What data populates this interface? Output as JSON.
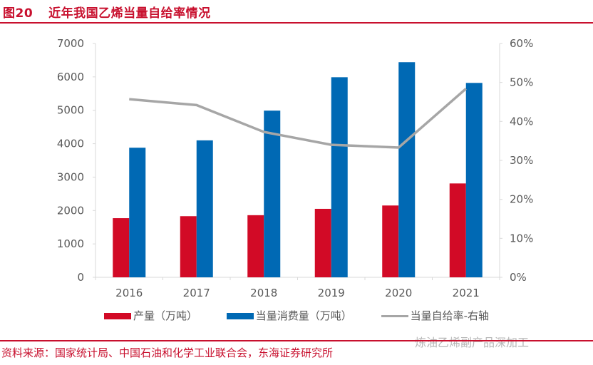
{
  "figure": {
    "number": "图20",
    "title": "近年我国乙烯当量自给率情况"
  },
  "source": "资料来源：国家统计局、中国石油和化学工业联合会，东海证券研究所",
  "watermark": "炼油乙烯副产品深加工",
  "chart_data": {
    "type": "bar+line",
    "categories": [
      "2016",
      "2017",
      "2018",
      "2019",
      "2020",
      "2021"
    ],
    "y_left": {
      "range": [
        0,
        7000
      ],
      "ticks": [
        "0",
        "1000",
        "2000",
        "3000",
        "4000",
        "5000",
        "6000",
        "7000"
      ]
    },
    "y_right": {
      "range": [
        0,
        60
      ],
      "ticks": [
        "0%",
        "10%",
        "20%",
        "30%",
        "40%",
        "50%",
        "60%"
      ]
    },
    "series": [
      {
        "name": "产量（万吨）",
        "type": "bar",
        "axis": "left",
        "color": "#d20a26",
        "values": [
          1770,
          1830,
          1860,
          2050,
          2150,
          2810
        ]
      },
      {
        "name": "当量消费量（万吨）",
        "type": "bar",
        "axis": "left",
        "color": "#0069b4",
        "values": [
          3880,
          4100,
          4990,
          5990,
          6440,
          5820
        ]
      },
      {
        "name": "当量自给率-右轴",
        "type": "line",
        "axis": "right",
        "color": "#a6a6a6",
        "values": [
          45.7,
          44.2,
          37.3,
          34.0,
          33.3,
          48.4
        ]
      }
    ],
    "grid": false,
    "legend": "bottom"
  }
}
